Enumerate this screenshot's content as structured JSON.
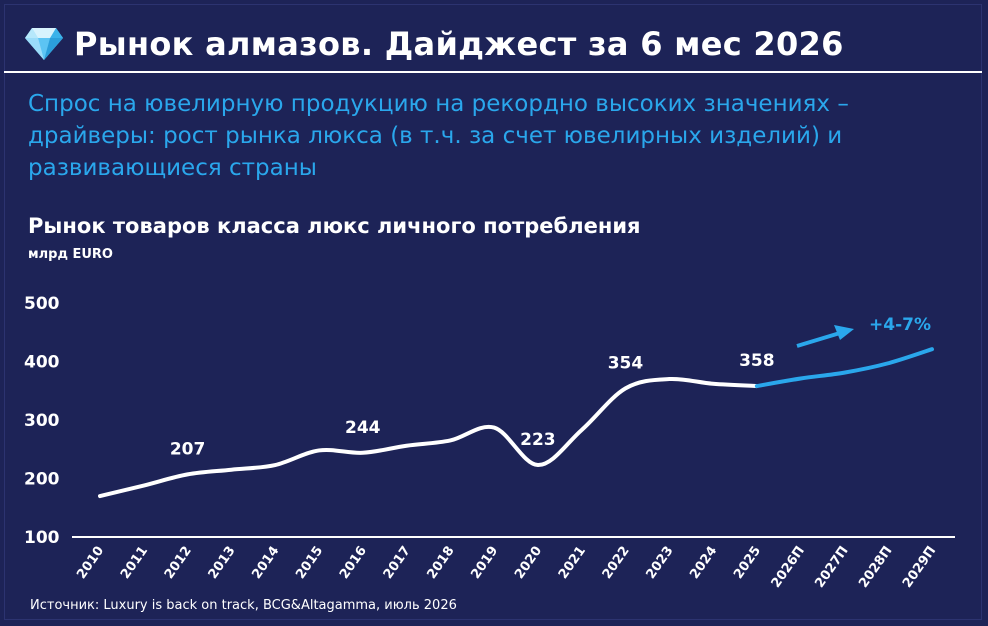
{
  "header": {
    "icon": "diamond-icon",
    "title": "Рынок алмазов. Дайджест за 6 мес 2026"
  },
  "subtitle": "Спрос на ювелирную продукцию на рекордно высоких значениях – драйверы: рост рынка люкса (в т.ч. за счет ювелирных изделий) и развивающиеся страны",
  "source": "Источник: Luxury is back on track, BCG&Altagamma, июль 2026",
  "colors": {
    "background": "#1d2357",
    "actual_line": "#ffffff",
    "forecast_line": "#2aa7ec",
    "accent": "#2aa7ec"
  },
  "chart_data": {
    "type": "line",
    "title": "Рынок товаров класса люкс личного потребления",
    "ylabel": "млрд EURO",
    "ylim": [
      100,
      500
    ],
    "yticks": [
      100,
      200,
      300,
      400,
      500
    ],
    "categories": [
      "2010",
      "2011",
      "2012",
      "2013",
      "2014",
      "2015",
      "2016",
      "2017",
      "2018",
      "2019",
      "2020",
      "2021",
      "2022",
      "2023",
      "2024",
      "2025",
      "2026П",
      "2027П",
      "2028П",
      "2029П"
    ],
    "series": [
      {
        "segment": "actual",
        "values": [
          170,
          188,
          207,
          215,
          223,
          248,
          244,
          256,
          265,
          287,
          223,
          283,
          354,
          370,
          362,
          358,
          null,
          null,
          null,
          null
        ]
      },
      {
        "segment": "forecast",
        "values": [
          null,
          null,
          null,
          null,
          null,
          null,
          null,
          null,
          null,
          null,
          null,
          null,
          null,
          null,
          null,
          358,
          371,
          381,
          397,
          421
        ]
      }
    ],
    "data_labels": [
      {
        "category": "2012",
        "text": "207"
      },
      {
        "category": "2016",
        "text": "244"
      },
      {
        "category": "2020",
        "text": "223"
      },
      {
        "category": "2022",
        "text": "354"
      },
      {
        "category": "2025",
        "text": "358"
      }
    ],
    "annotation": {
      "text": "+4-7%",
      "icon": "arrow-up-right-icon"
    },
    "grid": false,
    "legend": "none"
  }
}
